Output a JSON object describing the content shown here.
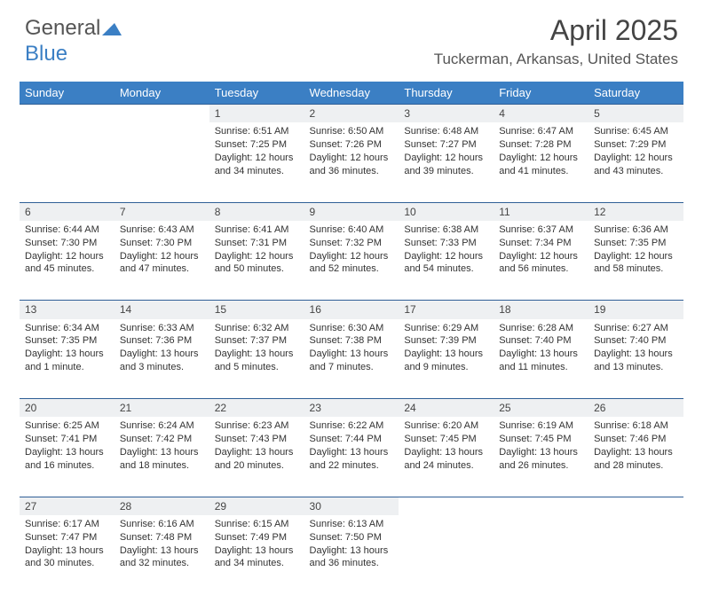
{
  "brand": {
    "part1": "General",
    "part2": "Blue"
  },
  "title": "April 2025",
  "location": "Tuckerman, Arkansas, United States",
  "header_bg": "#3b7fc4",
  "weekdays": [
    "Sunday",
    "Monday",
    "Tuesday",
    "Wednesday",
    "Thursday",
    "Friday",
    "Saturday"
  ],
  "daynum_bg": "#eef0f2",
  "rule_color": "#2f5f96",
  "weeks": [
    {
      "nums": [
        "",
        "",
        "1",
        "2",
        "3",
        "4",
        "5"
      ],
      "cells": [
        "",
        "",
        "Sunrise: 6:51 AM\nSunset: 7:25 PM\nDaylight: 12 hours and 34 minutes.",
        "Sunrise: 6:50 AM\nSunset: 7:26 PM\nDaylight: 12 hours and 36 minutes.",
        "Sunrise: 6:48 AM\nSunset: 7:27 PM\nDaylight: 12 hours and 39 minutes.",
        "Sunrise: 6:47 AM\nSunset: 7:28 PM\nDaylight: 12 hours and 41 minutes.",
        "Sunrise: 6:45 AM\nSunset: 7:29 PM\nDaylight: 12 hours and 43 minutes."
      ]
    },
    {
      "nums": [
        "6",
        "7",
        "8",
        "9",
        "10",
        "11",
        "12"
      ],
      "cells": [
        "Sunrise: 6:44 AM\nSunset: 7:30 PM\nDaylight: 12 hours and 45 minutes.",
        "Sunrise: 6:43 AM\nSunset: 7:30 PM\nDaylight: 12 hours and 47 minutes.",
        "Sunrise: 6:41 AM\nSunset: 7:31 PM\nDaylight: 12 hours and 50 minutes.",
        "Sunrise: 6:40 AM\nSunset: 7:32 PM\nDaylight: 12 hours and 52 minutes.",
        "Sunrise: 6:38 AM\nSunset: 7:33 PM\nDaylight: 12 hours and 54 minutes.",
        "Sunrise: 6:37 AM\nSunset: 7:34 PM\nDaylight: 12 hours and 56 minutes.",
        "Sunrise: 6:36 AM\nSunset: 7:35 PM\nDaylight: 12 hours and 58 minutes."
      ]
    },
    {
      "nums": [
        "13",
        "14",
        "15",
        "16",
        "17",
        "18",
        "19"
      ],
      "cells": [
        "Sunrise: 6:34 AM\nSunset: 7:35 PM\nDaylight: 13 hours and 1 minute.",
        "Sunrise: 6:33 AM\nSunset: 7:36 PM\nDaylight: 13 hours and 3 minutes.",
        "Sunrise: 6:32 AM\nSunset: 7:37 PM\nDaylight: 13 hours and 5 minutes.",
        "Sunrise: 6:30 AM\nSunset: 7:38 PM\nDaylight: 13 hours and 7 minutes.",
        "Sunrise: 6:29 AM\nSunset: 7:39 PM\nDaylight: 13 hours and 9 minutes.",
        "Sunrise: 6:28 AM\nSunset: 7:40 PM\nDaylight: 13 hours and 11 minutes.",
        "Sunrise: 6:27 AM\nSunset: 7:40 PM\nDaylight: 13 hours and 13 minutes."
      ]
    },
    {
      "nums": [
        "20",
        "21",
        "22",
        "23",
        "24",
        "25",
        "26"
      ],
      "cells": [
        "Sunrise: 6:25 AM\nSunset: 7:41 PM\nDaylight: 13 hours and 16 minutes.",
        "Sunrise: 6:24 AM\nSunset: 7:42 PM\nDaylight: 13 hours and 18 minutes.",
        "Sunrise: 6:23 AM\nSunset: 7:43 PM\nDaylight: 13 hours and 20 minutes.",
        "Sunrise: 6:22 AM\nSunset: 7:44 PM\nDaylight: 13 hours and 22 minutes.",
        "Sunrise: 6:20 AM\nSunset: 7:45 PM\nDaylight: 13 hours and 24 minutes.",
        "Sunrise: 6:19 AM\nSunset: 7:45 PM\nDaylight: 13 hours and 26 minutes.",
        "Sunrise: 6:18 AM\nSunset: 7:46 PM\nDaylight: 13 hours and 28 minutes."
      ]
    },
    {
      "nums": [
        "27",
        "28",
        "29",
        "30",
        "",
        "",
        ""
      ],
      "cells": [
        "Sunrise: 6:17 AM\nSunset: 7:47 PM\nDaylight: 13 hours and 30 minutes.",
        "Sunrise: 6:16 AM\nSunset: 7:48 PM\nDaylight: 13 hours and 32 minutes.",
        "Sunrise: 6:15 AM\nSunset: 7:49 PM\nDaylight: 13 hours and 34 minutes.",
        "Sunrise: 6:13 AM\nSunset: 7:50 PM\nDaylight: 13 hours and 36 minutes.",
        "",
        "",
        ""
      ]
    }
  ]
}
